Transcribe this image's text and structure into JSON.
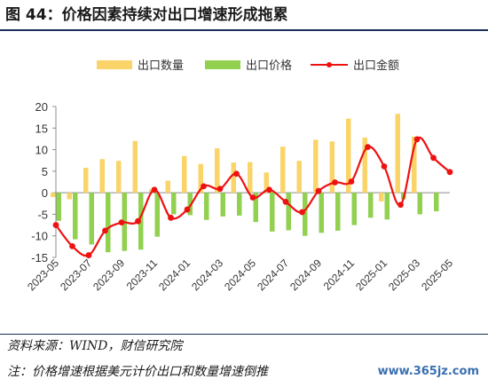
{
  "title": "图 44：价格因素持续对出口增速形成拖累",
  "source": "资料来源：WIND，财信研究院",
  "note": "注：价格增速根据美元计价出口和数量增速倒推",
  "watermark": "www.365jz.com",
  "colors": {
    "volume": "#fad469",
    "price": "#92d050",
    "value": "#ee1111"
  },
  "chart_data": {
    "type": "bar",
    "legend_position": "top",
    "grid": false,
    "ylim": [
      -15,
      20
    ],
    "yticks": [
      -15,
      -10,
      -5,
      0,
      5,
      10,
      15,
      20
    ],
    "x": [
      "2023-05",
      "2023-06",
      "2023-07",
      "2023-08",
      "2023-09",
      "2023-10",
      "2023-11",
      "2023-12",
      "2024-01",
      "2024-02",
      "2024-03",
      "2024-04",
      "2024-05",
      "2024-06",
      "2024-07",
      "2024-08",
      "2024-09",
      "2024-10",
      "2024-11",
      "2024-12",
      "2025-01",
      "2025-02",
      "2025-03",
      "2025-04",
      "2025-05"
    ],
    "xtick_labels": [
      "2023-05",
      "2023-07",
      "2023-09",
      "2023-11",
      "2024-01",
      "2024-03",
      "2024-05",
      "2024-07",
      "2024-09",
      "2024-11",
      "2025-01",
      "2025-03",
      "2025-05"
    ],
    "series": [
      {
        "name": "出口数量",
        "type": "bar",
        "values": [
          -1.0,
          -1.5,
          5.8,
          7.8,
          7.4,
          12.0,
          0.8,
          2.8,
          8.5,
          6.7,
          10.3,
          7.0,
          7.1,
          4.7,
          10.7,
          7.4,
          12.3,
          11.9,
          17.2,
          12.8,
          -2.0,
          18.3,
          13.0,
          null,
          null
        ]
      },
      {
        "name": "出口价格",
        "type": "bar",
        "values": [
          -6.5,
          -10.8,
          -12.0,
          -13.8,
          -13.5,
          -13.2,
          -10.2,
          -5.0,
          -5.2,
          -6.3,
          -5.5,
          -5.3,
          -6.8,
          -9.0,
          -8.7,
          -10.0,
          -9.3,
          -8.8,
          -7.5,
          -5.8,
          -6.2,
          -1.5,
          -5.0,
          -4.3,
          null
        ]
      },
      {
        "name": "出口金额",
        "type": "line",
        "values": [
          -7.5,
          -12.4,
          -14.5,
          -8.8,
          -6.9,
          -6.6,
          0.7,
          -5.8,
          -3.9,
          1.5,
          0.9,
          4.4,
          -1.1,
          0.7,
          -2.1,
          -4.5,
          0.4,
          2.4,
          2.6,
          10.6,
          6.1,
          -2.8,
          12.4,
          8.1,
          4.8
        ]
      }
    ]
  }
}
